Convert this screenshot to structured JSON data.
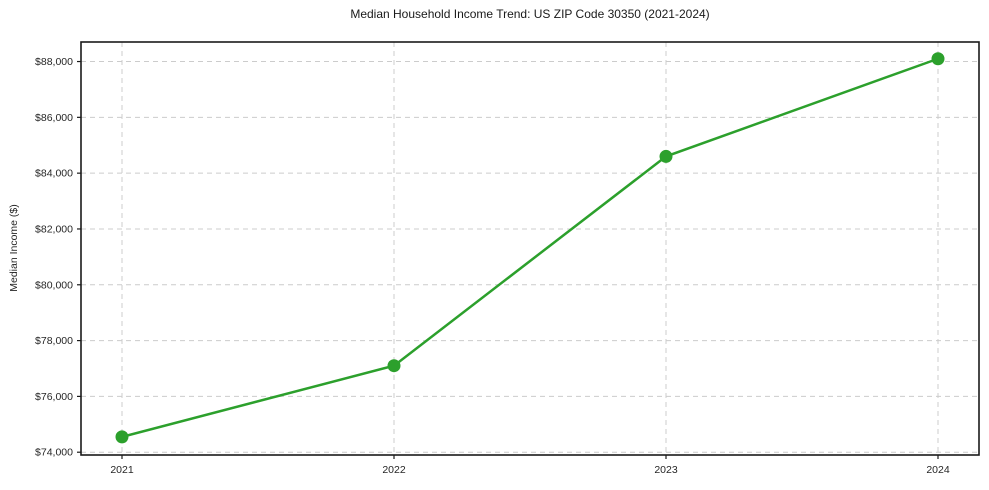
{
  "chart_data": {
    "type": "line",
    "title": "Median Household Income Trend: US ZIP Code 30350 (2021-2024)",
    "xlabel": "",
    "ylabel": "Median Income ($)",
    "categories": [
      "2021",
      "2022",
      "2023",
      "2024"
    ],
    "series": [
      {
        "name": "Median Household Income",
        "values": [
          74550,
          77100,
          84600,
          88100
        ],
        "color": "#2ca02c",
        "marker": "circle"
      }
    ],
    "yticks": [
      74000,
      76000,
      78000,
      80000,
      82000,
      84000,
      86000,
      88000
    ],
    "ytick_prefix": "$",
    "ylim": [
      73900,
      88700
    ],
    "grid": true,
    "grid_style": "dashed",
    "legend_position": "none",
    "colors": {
      "line": "#2ca02c",
      "grid": "#cccccc",
      "spine": "#1a1a1a",
      "text": "#262626",
      "background": "#ffffff"
    }
  }
}
